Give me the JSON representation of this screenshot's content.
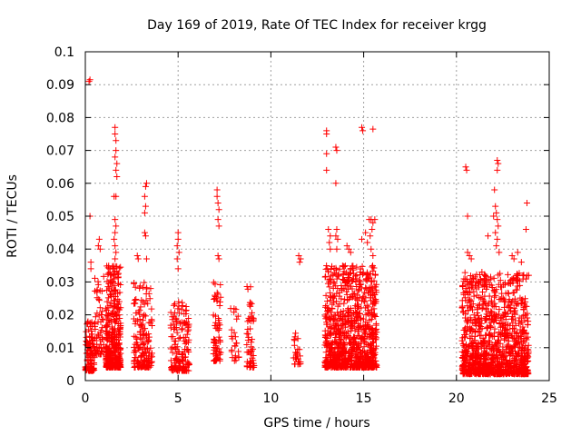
{
  "chart_data": {
    "type": "scatter",
    "title": "Day 169 of 2019, Rate Of TEC Index for receiver krgg",
    "xlabel": "GPS time / hours",
    "ylabel": "ROTI / TECUs",
    "xlim": [
      0,
      25
    ],
    "ylim": [
      0,
      0.1
    ],
    "x_ticks": [
      "0",
      "5",
      "10",
      "15",
      "20",
      "25"
    ],
    "y_ticks": [
      "0",
      "0.01",
      "0.02",
      "0.03",
      "0.04",
      "0.05",
      "0.06",
      "0.07",
      "0.08",
      "0.09",
      "0.1"
    ],
    "grid": true,
    "marker": "+",
    "color": "#ff0000",
    "clusters": [
      {
        "x": [
          0.0,
          0.5
        ],
        "y": [
          0.003,
          0.018
        ],
        "n": 120
      },
      {
        "x": [
          0.5,
          1.0
        ],
        "y": [
          0.008,
          0.035
        ],
        "n": 60
      },
      {
        "x": [
          1.1,
          1.9
        ],
        "y": [
          0.004,
          0.035
        ],
        "n": 380
      },
      {
        "x": [
          2.6,
          3.6
        ],
        "y": [
          0.004,
          0.03
        ],
        "n": 170
      },
      {
        "x": [
          4.6,
          5.6
        ],
        "y": [
          0.003,
          0.025
        ],
        "n": 160
      },
      {
        "x": [
          6.9,
          7.3
        ],
        "y": [
          0.006,
          0.03
        ],
        "n": 70
      },
      {
        "x": [
          7.8,
          8.3
        ],
        "y": [
          0.006,
          0.022
        ],
        "n": 25
      },
      {
        "x": [
          8.7,
          9.1
        ],
        "y": [
          0.004,
          0.03
        ],
        "n": 55
      },
      {
        "x": [
          11.2,
          11.6
        ],
        "y": [
          0.005,
          0.015
        ],
        "n": 25
      },
      {
        "x": [
          12.9,
          15.7
        ],
        "y": [
          0.004,
          0.035
        ],
        "n": 950
      },
      {
        "x": [
          20.3,
          23.9
        ],
        "y": [
          0.002,
          0.033
        ],
        "n": 1100
      }
    ],
    "points": [
      {
        "x": 0.2,
        "y": 0.091
      },
      {
        "x": 0.25,
        "y": 0.0915
      },
      {
        "x": 0.25,
        "y": 0.05
      },
      {
        "x": 0.3,
        "y": 0.036
      },
      {
        "x": 0.3,
        "y": 0.034
      },
      {
        "x": 0.7,
        "y": 0.041
      },
      {
        "x": 0.75,
        "y": 0.043
      },
      {
        "x": 0.8,
        "y": 0.04
      },
      {
        "x": 1.6,
        "y": 0.077
      },
      {
        "x": 1.6,
        "y": 0.075
      },
      {
        "x": 1.65,
        "y": 0.073
      },
      {
        "x": 1.65,
        "y": 0.07
      },
      {
        "x": 1.6,
        "y": 0.068
      },
      {
        "x": 1.7,
        "y": 0.066
      },
      {
        "x": 1.65,
        "y": 0.064
      },
      {
        "x": 1.7,
        "y": 0.062
      },
      {
        "x": 1.55,
        "y": 0.056
      },
      {
        "x": 1.65,
        "y": 0.056
      },
      {
        "x": 1.6,
        "y": 0.049
      },
      {
        "x": 1.65,
        "y": 0.047
      },
      {
        "x": 1.6,
        "y": 0.045
      },
      {
        "x": 1.55,
        "y": 0.043
      },
      {
        "x": 1.6,
        "y": 0.041
      },
      {
        "x": 1.65,
        "y": 0.039
      },
      {
        "x": 1.6,
        "y": 0.037
      },
      {
        "x": 3.3,
        "y": 0.06
      },
      {
        "x": 3.25,
        "y": 0.059
      },
      {
        "x": 3.2,
        "y": 0.056
      },
      {
        "x": 3.25,
        "y": 0.053
      },
      {
        "x": 3.2,
        "y": 0.051
      },
      {
        "x": 3.2,
        "y": 0.045
      },
      {
        "x": 3.25,
        "y": 0.044
      },
      {
        "x": 2.8,
        "y": 0.038
      },
      {
        "x": 2.85,
        "y": 0.037
      },
      {
        "x": 3.3,
        "y": 0.037
      },
      {
        "x": 5.0,
        "y": 0.045
      },
      {
        "x": 5.0,
        "y": 0.043
      },
      {
        "x": 4.95,
        "y": 0.041
      },
      {
        "x": 5.05,
        "y": 0.039
      },
      {
        "x": 4.95,
        "y": 0.037
      },
      {
        "x": 5.0,
        "y": 0.034
      },
      {
        "x": 7.1,
        "y": 0.058
      },
      {
        "x": 7.1,
        "y": 0.056
      },
      {
        "x": 7.15,
        "y": 0.054
      },
      {
        "x": 7.2,
        "y": 0.052
      },
      {
        "x": 7.15,
        "y": 0.049
      },
      {
        "x": 7.2,
        "y": 0.047
      },
      {
        "x": 7.15,
        "y": 0.038
      },
      {
        "x": 7.2,
        "y": 0.037
      },
      {
        "x": 11.5,
        "y": 0.038
      },
      {
        "x": 11.55,
        "y": 0.036
      },
      {
        "x": 11.6,
        "y": 0.037
      },
      {
        "x": 13.0,
        "y": 0.076
      },
      {
        "x": 13.0,
        "y": 0.075
      },
      {
        "x": 13.0,
        "y": 0.069
      },
      {
        "x": 13.0,
        "y": 0.064
      },
      {
        "x": 13.1,
        "y": 0.046
      },
      {
        "x": 13.2,
        "y": 0.044
      },
      {
        "x": 13.15,
        "y": 0.042
      },
      {
        "x": 13.2,
        "y": 0.04
      },
      {
        "x": 13.5,
        "y": 0.071
      },
      {
        "x": 13.55,
        "y": 0.07
      },
      {
        "x": 13.5,
        "y": 0.06
      },
      {
        "x": 13.55,
        "y": 0.046
      },
      {
        "x": 13.5,
        "y": 0.044
      },
      {
        "x": 13.6,
        "y": 0.043
      },
      {
        "x": 13.55,
        "y": 0.04
      },
      {
        "x": 14.1,
        "y": 0.041
      },
      {
        "x": 14.2,
        "y": 0.04
      },
      {
        "x": 14.3,
        "y": 0.039
      },
      {
        "x": 14.9,
        "y": 0.077
      },
      {
        "x": 14.95,
        "y": 0.076
      },
      {
        "x": 15.5,
        "y": 0.0765
      },
      {
        "x": 14.9,
        "y": 0.043
      },
      {
        "x": 15.1,
        "y": 0.045
      },
      {
        "x": 15.3,
        "y": 0.049
      },
      {
        "x": 15.4,
        "y": 0.049
      },
      {
        "x": 15.5,
        "y": 0.048
      },
      {
        "x": 15.6,
        "y": 0.049
      },
      {
        "x": 15.45,
        "y": 0.046
      },
      {
        "x": 15.35,
        "y": 0.044
      },
      {
        "x": 15.2,
        "y": 0.042
      },
      {
        "x": 15.4,
        "y": 0.04
      },
      {
        "x": 15.5,
        "y": 0.038
      },
      {
        "x": 20.5,
        "y": 0.065
      },
      {
        "x": 20.55,
        "y": 0.064
      },
      {
        "x": 20.6,
        "y": 0.05
      },
      {
        "x": 20.6,
        "y": 0.039
      },
      {
        "x": 20.7,
        "y": 0.038
      },
      {
        "x": 20.8,
        "y": 0.037
      },
      {
        "x": 21.7,
        "y": 0.044
      },
      {
        "x": 22.0,
        "y": 0.05
      },
      {
        "x": 22.05,
        "y": 0.058
      },
      {
        "x": 22.1,
        "y": 0.053
      },
      {
        "x": 22.15,
        "y": 0.051
      },
      {
        "x": 22.2,
        "y": 0.049
      },
      {
        "x": 22.25,
        "y": 0.047
      },
      {
        "x": 22.1,
        "y": 0.045
      },
      {
        "x": 22.2,
        "y": 0.043
      },
      {
        "x": 22.15,
        "y": 0.041
      },
      {
        "x": 22.2,
        "y": 0.067
      },
      {
        "x": 22.25,
        "y": 0.066
      },
      {
        "x": 22.2,
        "y": 0.064
      },
      {
        "x": 22.3,
        "y": 0.039
      },
      {
        "x": 23.0,
        "y": 0.038
      },
      {
        "x": 23.1,
        "y": 0.037
      },
      {
        "x": 23.3,
        "y": 0.039
      },
      {
        "x": 23.5,
        "y": 0.036
      },
      {
        "x": 23.8,
        "y": 0.054
      },
      {
        "x": 23.75,
        "y": 0.046
      }
    ]
  }
}
